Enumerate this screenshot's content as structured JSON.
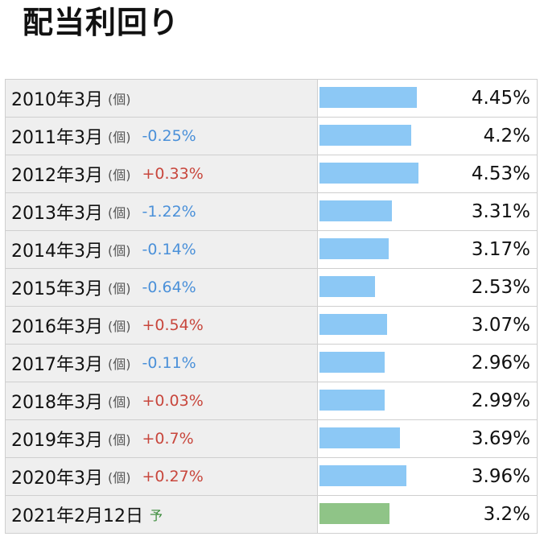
{
  "page": {
    "title": "配当利回り"
  },
  "colors": {
    "actual_bar": "#8cc8f5",
    "forecast_bar": "#8fc487",
    "negative_change": "#4a90d9",
    "positive_change": "#c8463c"
  },
  "chart_data": {
    "type": "bar",
    "title": "配当利回り",
    "orientation": "horizontal",
    "categories": [
      "2010年3月",
      "2011年3月",
      "2012年3月",
      "2013年3月",
      "2014年3月",
      "2015年3月",
      "2016年3月",
      "2017年3月",
      "2018年3月",
      "2019年3月",
      "2020年3月",
      "2021年2月12日"
    ],
    "values": [
      4.45,
      4.2,
      4.53,
      3.31,
      3.17,
      2.53,
      3.07,
      2.96,
      2.99,
      3.69,
      3.96,
      3.2
    ],
    "value_labels": [
      "4.45%",
      "4.2%",
      "4.53%",
      "3.31%",
      "3.17%",
      "2.53%",
      "3.07%",
      "2.96%",
      "2.99%",
      "3.69%",
      "3.96%",
      "3.2%"
    ],
    "xlim": [
      0,
      10
    ],
    "rows": [
      {
        "period": "2010年3月",
        "unit": "(個)",
        "change": "",
        "value_label": "4.45%",
        "value": 4.45,
        "forecast": false
      },
      {
        "period": "2011年3月",
        "unit": "(個)",
        "change": "-0.25%",
        "value_label": "4.2%",
        "value": 4.2,
        "forecast": false
      },
      {
        "period": "2012年3月",
        "unit": "(個)",
        "change": "+0.33%",
        "value_label": "4.53%",
        "value": 4.53,
        "forecast": false
      },
      {
        "period": "2013年3月",
        "unit": "(個)",
        "change": "-1.22%",
        "value_label": "3.31%",
        "value": 3.31,
        "forecast": false
      },
      {
        "period": "2014年3月",
        "unit": "(個)",
        "change": "-0.14%",
        "value_label": "3.17%",
        "value": 3.17,
        "forecast": false
      },
      {
        "period": "2015年3月",
        "unit": "(個)",
        "change": "-0.64%",
        "value_label": "2.53%",
        "value": 2.53,
        "forecast": false
      },
      {
        "period": "2016年3月",
        "unit": "(個)",
        "change": "+0.54%",
        "value_label": "3.07%",
        "value": 3.07,
        "forecast": false
      },
      {
        "period": "2017年3月",
        "unit": "(個)",
        "change": "-0.11%",
        "value_label": "2.96%",
        "value": 2.96,
        "forecast": false
      },
      {
        "period": "2018年3月",
        "unit": "(個)",
        "change": "+0.03%",
        "value_label": "2.99%",
        "value": 2.99,
        "forecast": false
      },
      {
        "period": "2019年3月",
        "unit": "(個)",
        "change": "+0.7%",
        "value_label": "3.69%",
        "value": 3.69,
        "forecast": false
      },
      {
        "period": "2020年3月",
        "unit": "(個)",
        "change": "+0.27%",
        "value_label": "3.96%",
        "value": 3.96,
        "forecast": false
      },
      {
        "period": "2021年2月12日",
        "unit": "",
        "forecast_label": "予",
        "change": "",
        "value_label": "3.2%",
        "value": 3.2,
        "forecast": true
      }
    ]
  }
}
